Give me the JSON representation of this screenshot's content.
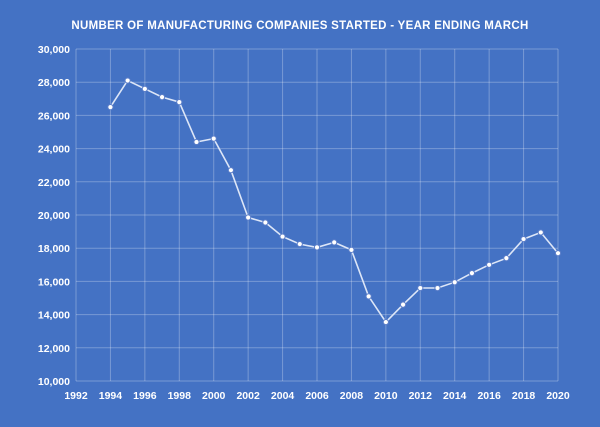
{
  "chart_data": {
    "type": "line",
    "title": "NUMBER OF MANUFACTURING COMPANIES STARTED - YEAR ENDING MARCH",
    "xlabel": "",
    "ylabel": "",
    "xlim": [
      1992,
      2020
    ],
    "ylim": [
      10000,
      30000
    ],
    "x_ticks": [
      1992,
      1994,
      1996,
      1998,
      2000,
      2002,
      2004,
      2006,
      2008,
      2010,
      2012,
      2014,
      2016,
      2018,
      2020
    ],
    "y_ticks": [
      10000,
      12000,
      14000,
      16000,
      18000,
      20000,
      22000,
      24000,
      26000,
      28000,
      30000
    ],
    "grid": true,
    "legend": "none",
    "colors": {
      "background": "#4472c4",
      "line": "#dde6f7",
      "marker": "#ffffff",
      "text": "#ffffff"
    },
    "series": [
      {
        "x": [
          1994,
          1995,
          1996,
          1997,
          1998,
          1999,
          2000,
          2001,
          2002,
          2003,
          2004,
          2005,
          2006,
          2007,
          2008,
          2009,
          2010,
          2011,
          2012,
          2013,
          2014,
          2015,
          2016,
          2017,
          2018,
          2019,
          2020
        ],
        "values": [
          26500,
          28100,
          27600,
          27100,
          26800,
          24400,
          24600,
          22700,
          19850,
          19550,
          18700,
          18250,
          18050,
          18350,
          17900,
          15100,
          13550,
          14600,
          15600,
          15600,
          15950,
          16500,
          17000,
          17400,
          18550,
          18950,
          17700
        ]
      }
    ]
  }
}
